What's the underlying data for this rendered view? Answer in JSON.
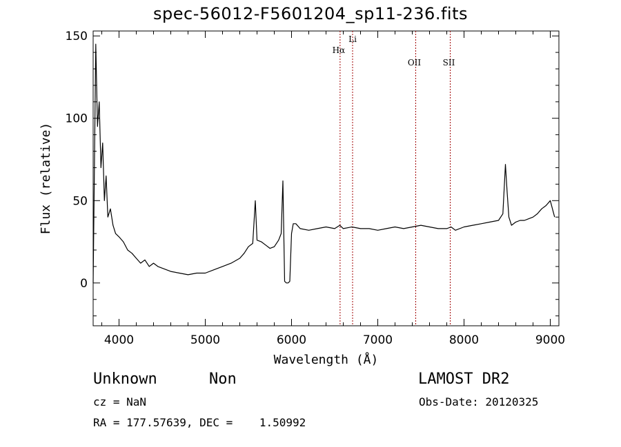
{
  "chart_data": {
    "type": "line",
    "title": "spec-56012-F5601204_sp11-236.fits",
    "xlabel": "Wavelength (Å)",
    "ylabel": "Flux (relative)",
    "xlim": [
      3700,
      9100
    ],
    "ylim": [
      -26,
      153
    ],
    "xticks": [
      "4000",
      "5000",
      "6000",
      "7000",
      "8000",
      "9000"
    ],
    "yticks": [
      "0",
      "50",
      "100",
      "150"
    ],
    "xtick_values": [
      4000,
      5000,
      6000,
      7000,
      8000,
      9000
    ],
    "ytick_values": [
      0,
      50,
      100,
      150
    ],
    "grid": false,
    "series": [
      {
        "color": "#000000",
        "x": [
          3700,
          3730,
          3750,
          3770,
          3790,
          3810,
          3830,
          3850,
          3870,
          3900,
          3930,
          3960,
          4000,
          4050,
          4100,
          4150,
          4200,
          4250,
          4300,
          4350,
          4400,
          4450,
          4500,
          4600,
          4700,
          4800,
          4900,
          5000,
          5100,
          5200,
          5300,
          5400,
          5450,
          5500,
          5550,
          5580,
          5600,
          5650,
          5700,
          5750,
          5800,
          5850,
          5880,
          5900,
          5920,
          5940,
          5960,
          5980,
          6000,
          6020,
          6050,
          6100,
          6200,
          6300,
          6400,
          6500,
          6560,
          6600,
          6700,
          6800,
          6900,
          7000,
          7100,
          7200,
          7300,
          7400,
          7500,
          7600,
          7700,
          7800,
          7850,
          7900,
          8000,
          8100,
          8200,
          8300,
          8400,
          8450,
          8480,
          8500,
          8520,
          8550,
          8600,
          8650,
          8700,
          8750,
          8800,
          8850,
          8900,
          8950,
          9000,
          9050
        ],
        "y": [
          0,
          145,
          95,
          110,
          70,
          85,
          50,
          65,
          40,
          45,
          35,
          30,
          28,
          25,
          20,
          18,
          15,
          12,
          14,
          10,
          12,
          10,
          9,
          7,
          6,
          5,
          6,
          6,
          8,
          10,
          12,
          15,
          18,
          22,
          24,
          50,
          26,
          25,
          23,
          21,
          22,
          26,
          30,
          62,
          1,
          0,
          0,
          1,
          30,
          36,
          36,
          33,
          32,
          33,
          34,
          33,
          35,
          33,
          34,
          33,
          33,
          32,
          33,
          34,
          33,
          34,
          35,
          34,
          33,
          33,
          34,
          32,
          34,
          35,
          36,
          37,
          38,
          42,
          72,
          55,
          40,
          35,
          37,
          38,
          38,
          39,
          40,
          42,
          45,
          47,
          50,
          40
        ]
      }
    ],
    "lines": [
      {
        "name": "Hα",
        "x": 6563
      },
      {
        "name": "Li",
        "x": 6708
      },
      {
        "name": "OII",
        "x": 7440
      },
      {
        "name": "SII",
        "x": 7840
      }
    ],
    "line_color": "#a00000"
  },
  "info": {
    "object_class": "Unknown",
    "subclass": "Non",
    "survey": "LAMOST DR2",
    "cz": "cz = NaN",
    "obs_date": "Obs-Date: 20120325",
    "radec": "RA = 177.57639, DEC =    1.50992"
  }
}
